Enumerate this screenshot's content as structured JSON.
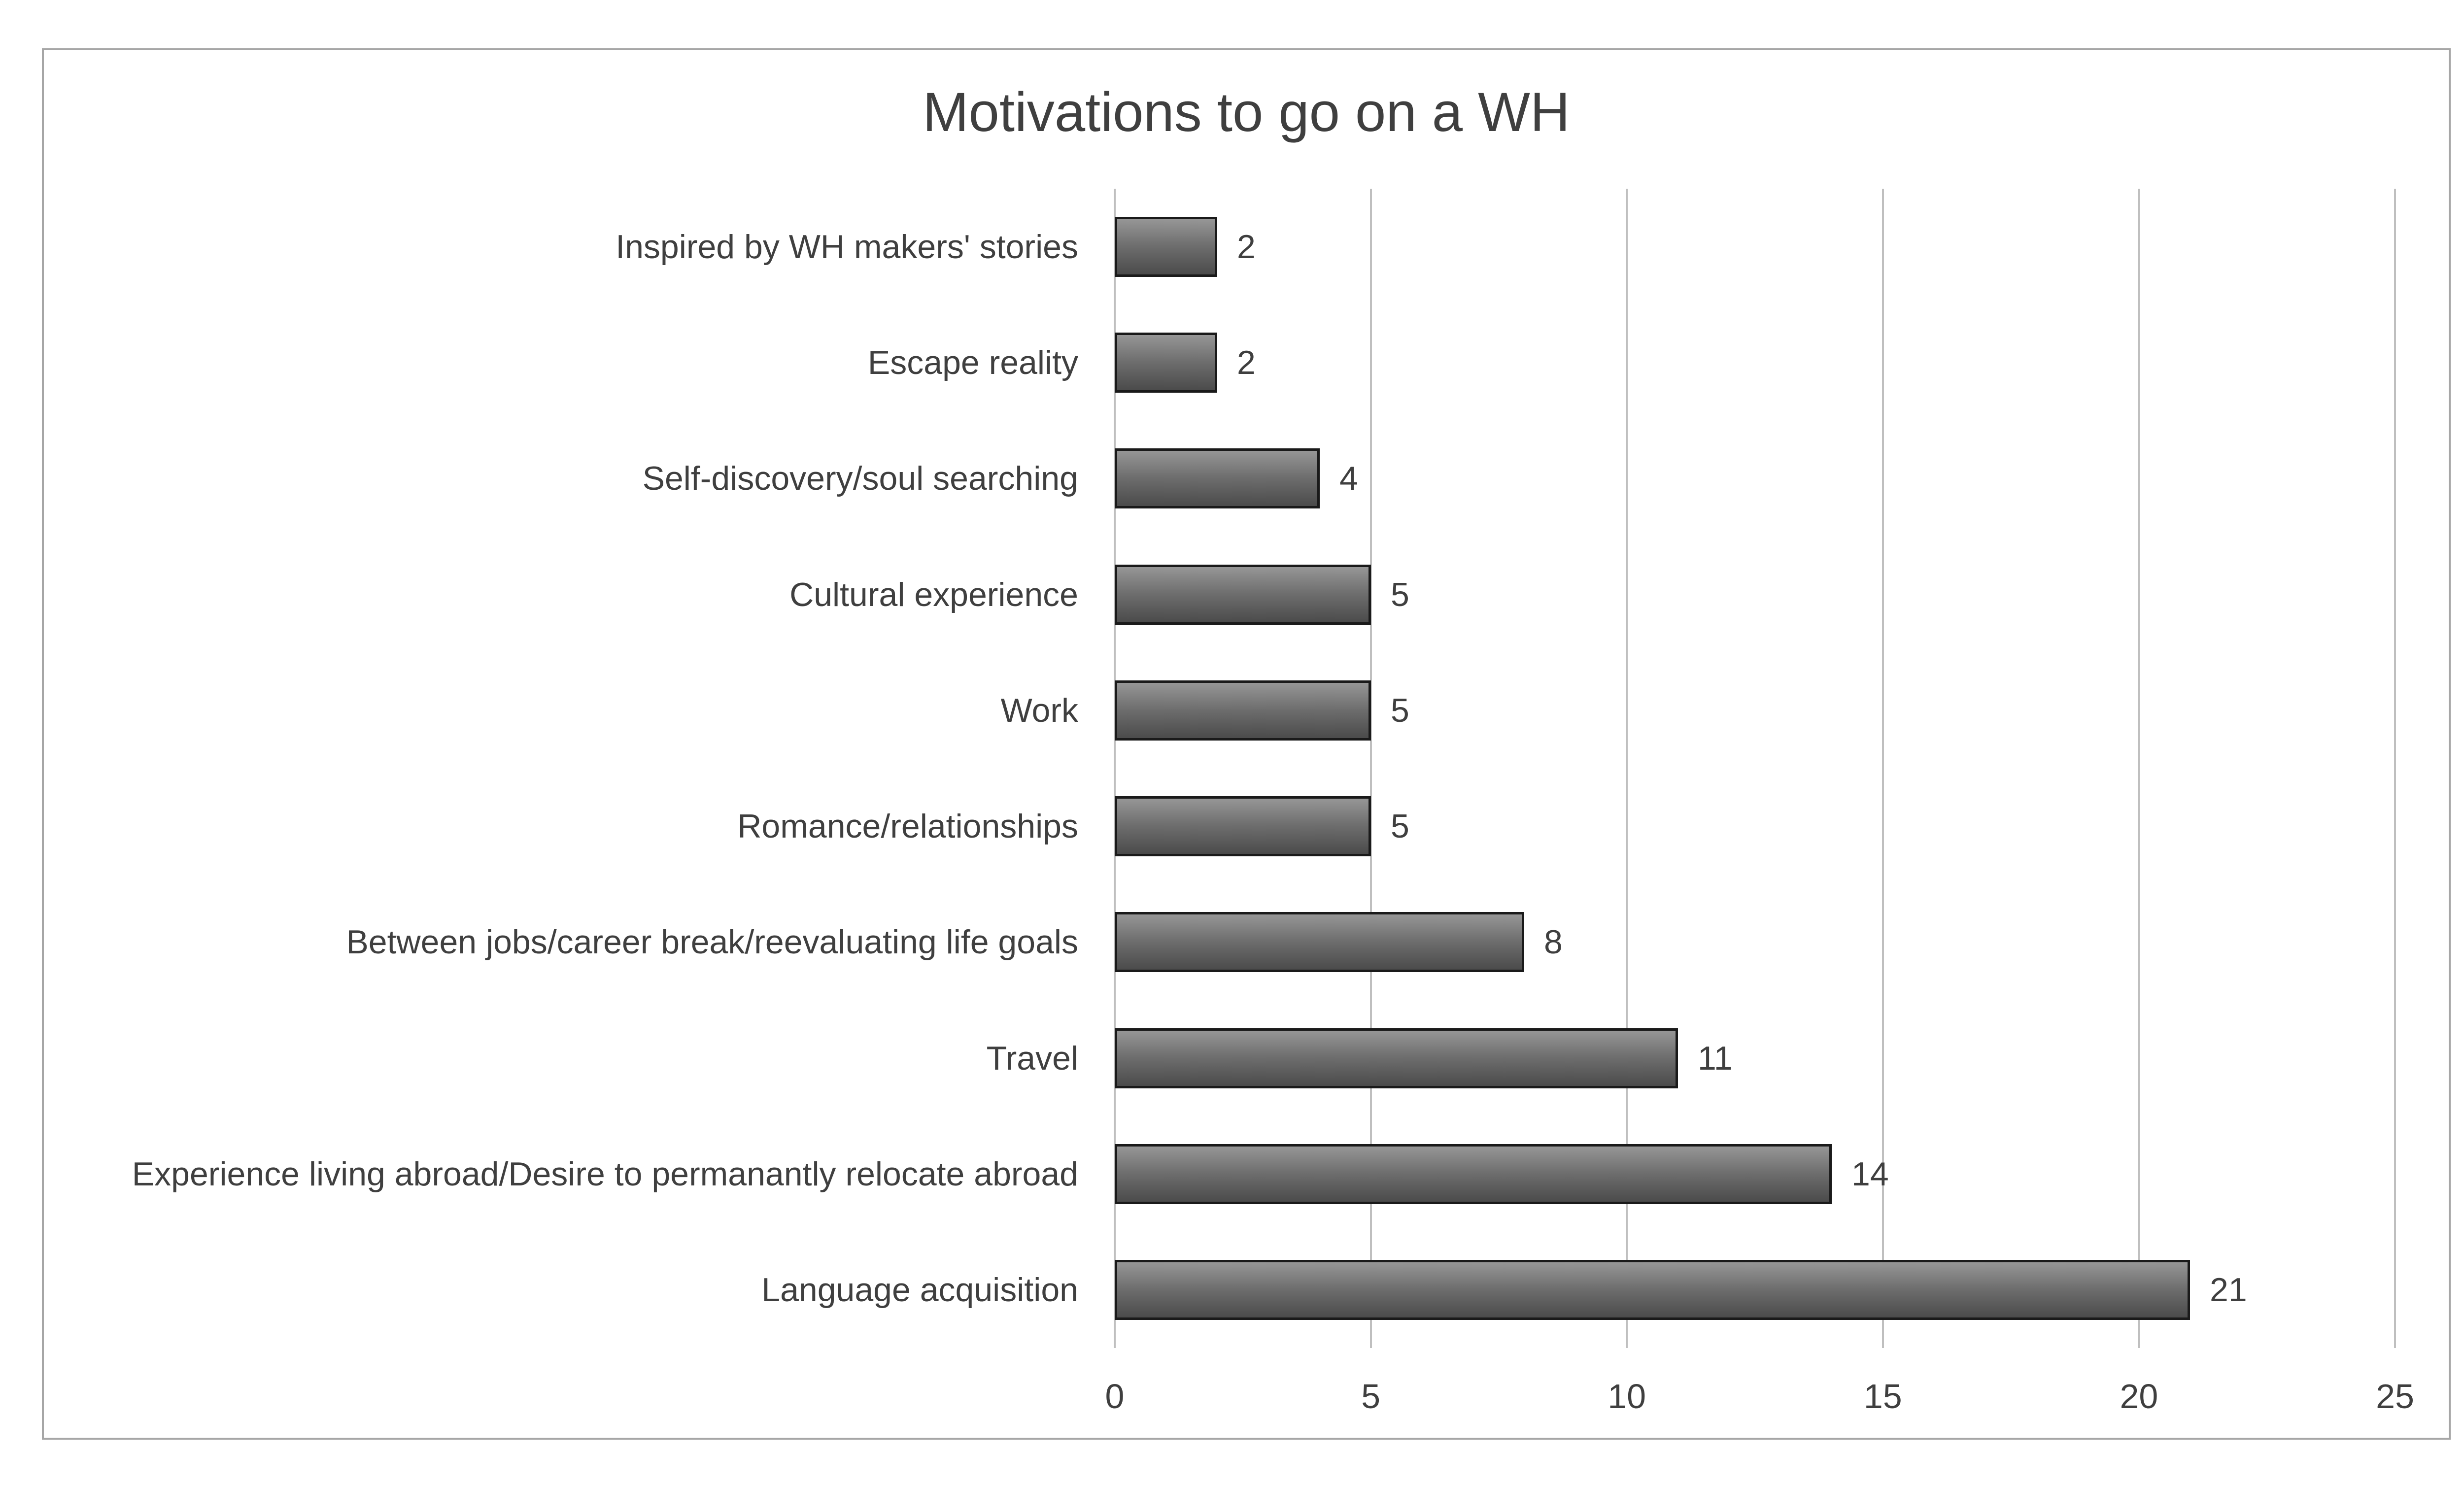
{
  "chart_data": {
    "type": "bar",
    "orientation": "horizontal",
    "title": "Motivations to go on a WH",
    "categories": [
      "Inspired by WH makers' stories",
      "Escape reality",
      "Self-discovery/soul searching",
      "Cultural experience",
      "Work",
      "Romance/relationships",
      "Between jobs/career break/reevaluating life goals",
      "Travel",
      "Experience living abroad/Desire to permanantly relocate abroad",
      "Language acquisition"
    ],
    "values": [
      2,
      2,
      4,
      5,
      5,
      5,
      8,
      11,
      14,
      21
    ],
    "data_labels": [
      "2",
      "2",
      "4",
      "5",
      "5",
      "5",
      "8",
      "11",
      "14",
      "21"
    ],
    "x_ticks": [
      "0",
      "5",
      "10",
      "15",
      "20",
      "25"
    ],
    "xlim": [
      0,
      25
    ],
    "ylabel": "",
    "xlabel": "",
    "legend": "none",
    "grid": "vertical",
    "colors": {
      "bar_gradient_top": "#969696",
      "bar_gradient_mid": "#6e6e6e",
      "bar_gradient_bottom": "#4b4b4b",
      "bar_border": "#1a1a1a",
      "gridline": "#bfbfbf",
      "frame_border": "#a6a6a6",
      "text": "#3f3f3f"
    }
  }
}
